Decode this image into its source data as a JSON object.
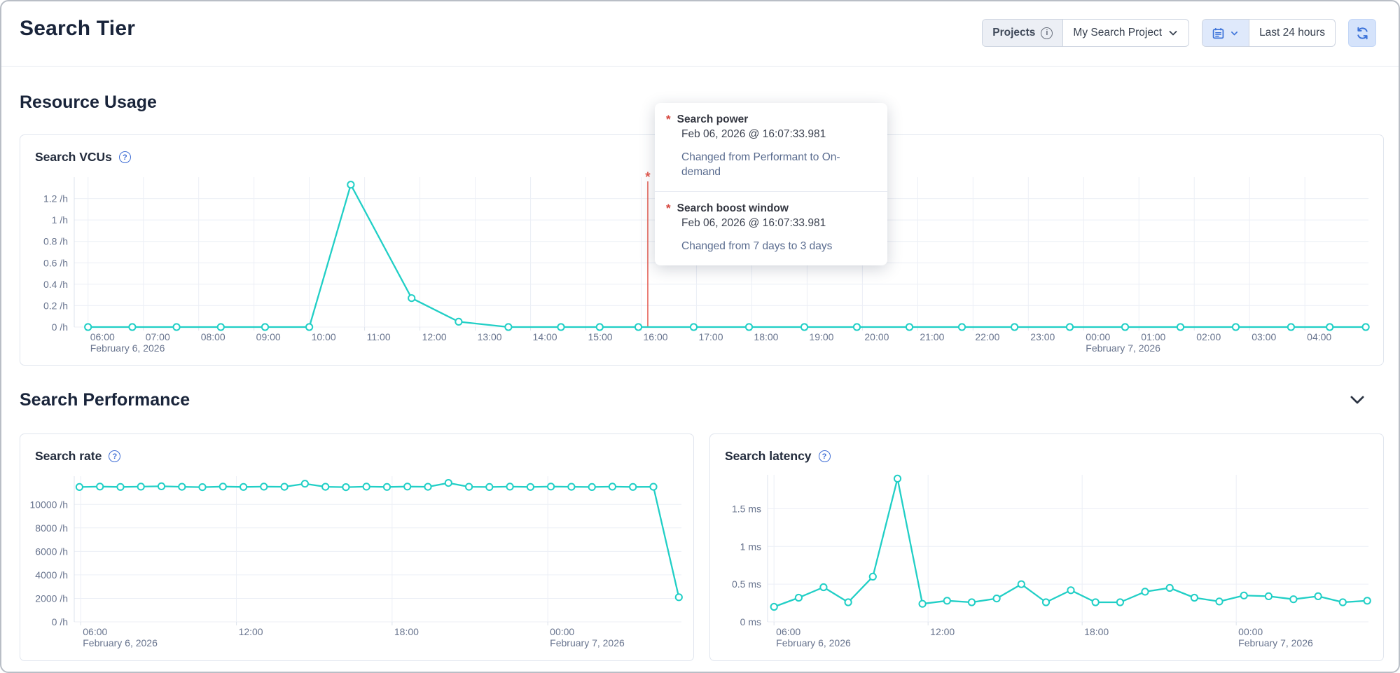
{
  "header": {
    "title": "Search Tier",
    "projects_label": "Projects",
    "project_name": "My Search Project",
    "time_range": "Last 24 hours"
  },
  "sections": {
    "resource_usage": "Resource Usage",
    "search_performance": "Search Performance"
  },
  "icons": {
    "help": "?",
    "info": "i",
    "annotation_marker": "*"
  },
  "colors": {
    "series_teal": "#21cfc6",
    "annotation_red": "#e4594e",
    "gridline": "#eceff6",
    "axis_line": "#dde3ec",
    "axis_text": "#68748e",
    "accent_blue": "#3b72d9"
  },
  "tooltip": {
    "items": [
      {
        "marker": "*",
        "title": "Search power",
        "timestamp": "Feb 06, 2026 @ 16:07:33.981",
        "description": "Changed from Performant to On-demand"
      },
      {
        "marker": "*",
        "title": "Search boost window",
        "timestamp": "Feb 06, 2026 @ 16:07:33.981",
        "description": "Changed from 7 days to 3 days"
      }
    ]
  },
  "chart_data": [
    {
      "type": "line",
      "title": "Search VCUs",
      "unit": "/h",
      "x_axis": {
        "domain_hours": [
          0,
          23.4
        ],
        "start_time": "05:45",
        "ticks": [
          {
            "t": 0.25,
            "label": "06:00",
            "date": "February 6, 2026"
          },
          {
            "t": 1.25,
            "label": "07:00"
          },
          {
            "t": 2.25,
            "label": "08:00"
          },
          {
            "t": 3.25,
            "label": "09:00"
          },
          {
            "t": 4.25,
            "label": "10:00"
          },
          {
            "t": 5.25,
            "label": "11:00"
          },
          {
            "t": 6.25,
            "label": "12:00"
          },
          {
            "t": 7.25,
            "label": "13:00"
          },
          {
            "t": 8.25,
            "label": "14:00"
          },
          {
            "t": 9.25,
            "label": "15:00"
          },
          {
            "t": 10.25,
            "label": "16:00"
          },
          {
            "t": 11.25,
            "label": "17:00"
          },
          {
            "t": 12.25,
            "label": "18:00"
          },
          {
            "t": 13.25,
            "label": "19:00"
          },
          {
            "t": 14.25,
            "label": "20:00"
          },
          {
            "t": 15.25,
            "label": "21:00"
          },
          {
            "t": 16.25,
            "label": "22:00"
          },
          {
            "t": 17.25,
            "label": "23:00"
          },
          {
            "t": 18.25,
            "label": "00:00",
            "date": "February 7, 2026"
          },
          {
            "t": 19.25,
            "label": "01:00"
          },
          {
            "t": 20.25,
            "label": "02:00"
          },
          {
            "t": 21.25,
            "label": "03:00"
          },
          {
            "t": 22.25,
            "label": "04:00"
          }
        ]
      },
      "y_axis": {
        "max": 1.4,
        "ticks": [
          {
            "v": 0,
            "label": "0 /h"
          },
          {
            "v": 0.2,
            "label": "0.2 /h"
          },
          {
            "v": 0.4,
            "label": "0.4 /h"
          },
          {
            "v": 0.6,
            "label": "0.6 /h"
          },
          {
            "v": 0.8,
            "label": "0.8 /h"
          },
          {
            "v": 1,
            "label": "1 /h"
          },
          {
            "v": 1.2,
            "label": "1.2 /h"
          }
        ]
      },
      "series": [
        {
          "name": "Search VCUs",
          "points": [
            [
              0.25,
              0
            ],
            [
              1.05,
              0
            ],
            [
              1.85,
              0
            ],
            [
              2.65,
              0
            ],
            [
              3.45,
              0
            ],
            [
              4.25,
              0
            ],
            [
              5.0,
              1.33
            ],
            [
              6.1,
              0.27
            ],
            [
              6.95,
              0.05
            ],
            [
              7.85,
              0
            ],
            [
              8.8,
              0
            ],
            [
              9.5,
              0
            ],
            [
              10.2,
              0
            ],
            [
              11.2,
              0
            ],
            [
              12.2,
              0
            ],
            [
              13.2,
              0
            ],
            [
              14.15,
              0
            ],
            [
              15.1,
              0
            ],
            [
              16.05,
              0
            ],
            [
              17.0,
              0
            ],
            [
              18.0,
              0
            ],
            [
              19.0,
              0
            ],
            [
              20.0,
              0
            ],
            [
              21.0,
              0
            ],
            [
              22.0,
              0
            ],
            [
              22.7,
              0
            ],
            [
              23.35,
              0
            ]
          ]
        }
      ],
      "annotations": [
        {
          "t": 10.37,
          "marker": "*",
          "time": "16:07",
          "color": "#e4594e"
        }
      ]
    },
    {
      "type": "line",
      "title": "Search rate",
      "unit": "/h",
      "x_axis": {
        "domain_hours": [
          0,
          23.4
        ],
        "start_time": "05:45",
        "ticks": [
          {
            "t": 0.25,
            "label": "06:00",
            "date": "February 6, 2026"
          },
          {
            "t": 6.25,
            "label": "12:00"
          },
          {
            "t": 12.25,
            "label": "18:00"
          },
          {
            "t": 18.25,
            "label": "00:00",
            "date": "February 7, 2026"
          }
        ]
      },
      "y_axis": {
        "max": 12400,
        "ticks": [
          {
            "v": 0,
            "label": "0 /h"
          },
          {
            "v": 2000,
            "label": "2000 /h"
          },
          {
            "v": 4000,
            "label": "4000 /h"
          },
          {
            "v": 6000,
            "label": "6000 /h"
          },
          {
            "v": 8000,
            "label": "8000 /h"
          },
          {
            "v": 10000,
            "label": "10000 /h"
          }
        ]
      },
      "series": [
        {
          "name": "Search rate",
          "points": [
            [
              0.2,
              11480
            ],
            [
              0.99,
              11520
            ],
            [
              1.78,
              11490
            ],
            [
              2.57,
              11510
            ],
            [
              3.36,
              11540
            ],
            [
              4.15,
              11500
            ],
            [
              4.94,
              11470
            ],
            [
              5.73,
              11520
            ],
            [
              6.52,
              11490
            ],
            [
              7.31,
              11510
            ],
            [
              8.1,
              11500
            ],
            [
              8.89,
              11760
            ],
            [
              9.68,
              11500
            ],
            [
              10.47,
              11470
            ],
            [
              11.26,
              11510
            ],
            [
              12.05,
              11490
            ],
            [
              12.84,
              11520
            ],
            [
              13.63,
              11500
            ],
            [
              14.42,
              11830
            ],
            [
              15.21,
              11500
            ],
            [
              16.0,
              11480
            ],
            [
              16.79,
              11510
            ],
            [
              17.58,
              11490
            ],
            [
              18.37,
              11520
            ],
            [
              19.16,
              11500
            ],
            [
              19.95,
              11480
            ],
            [
              20.74,
              11510
            ],
            [
              21.53,
              11490
            ],
            [
              22.32,
              11500
            ],
            [
              23.3,
              2100
            ]
          ]
        }
      ],
      "annotations": []
    },
    {
      "type": "line",
      "title": "Search latency",
      "unit": "ms",
      "x_axis": {
        "domain_hours": [
          0,
          23.4
        ],
        "start_time": "05:45",
        "ticks": [
          {
            "t": 0.25,
            "label": "06:00",
            "date": "February 6, 2026"
          },
          {
            "t": 6.25,
            "label": "12:00"
          },
          {
            "t": 12.25,
            "label": "18:00"
          },
          {
            "t": 18.25,
            "label": "00:00",
            "date": "February 7, 2026"
          }
        ]
      },
      "y_axis": {
        "max": 1.95,
        "ticks": [
          {
            "v": 0,
            "label": "0 ms"
          },
          {
            "v": 0.5,
            "label": "0.5 ms"
          },
          {
            "v": 1,
            "label": "1 ms"
          },
          {
            "v": 1.5,
            "label": "1.5 ms"
          }
        ]
      },
      "series": [
        {
          "name": "Search latency",
          "points": [
            [
              0.25,
              0.2
            ],
            [
              1.21,
              0.32
            ],
            [
              2.18,
              0.46
            ],
            [
              3.14,
              0.26
            ],
            [
              4.1,
              0.6
            ],
            [
              5.06,
              1.9
            ],
            [
              6.03,
              0.24
            ],
            [
              6.99,
              0.28
            ],
            [
              7.95,
              0.26
            ],
            [
              8.92,
              0.31
            ],
            [
              9.88,
              0.5
            ],
            [
              10.84,
              0.26
            ],
            [
              11.81,
              0.42
            ],
            [
              12.77,
              0.26
            ],
            [
              13.73,
              0.26
            ],
            [
              14.7,
              0.4
            ],
            [
              15.66,
              0.45
            ],
            [
              16.62,
              0.32
            ],
            [
              17.59,
              0.27
            ],
            [
              18.55,
              0.35
            ],
            [
              19.51,
              0.34
            ],
            [
              20.48,
              0.3
            ],
            [
              21.44,
              0.34
            ],
            [
              22.4,
              0.26
            ],
            [
              23.35,
              0.28
            ]
          ]
        }
      ],
      "annotations": []
    }
  ]
}
